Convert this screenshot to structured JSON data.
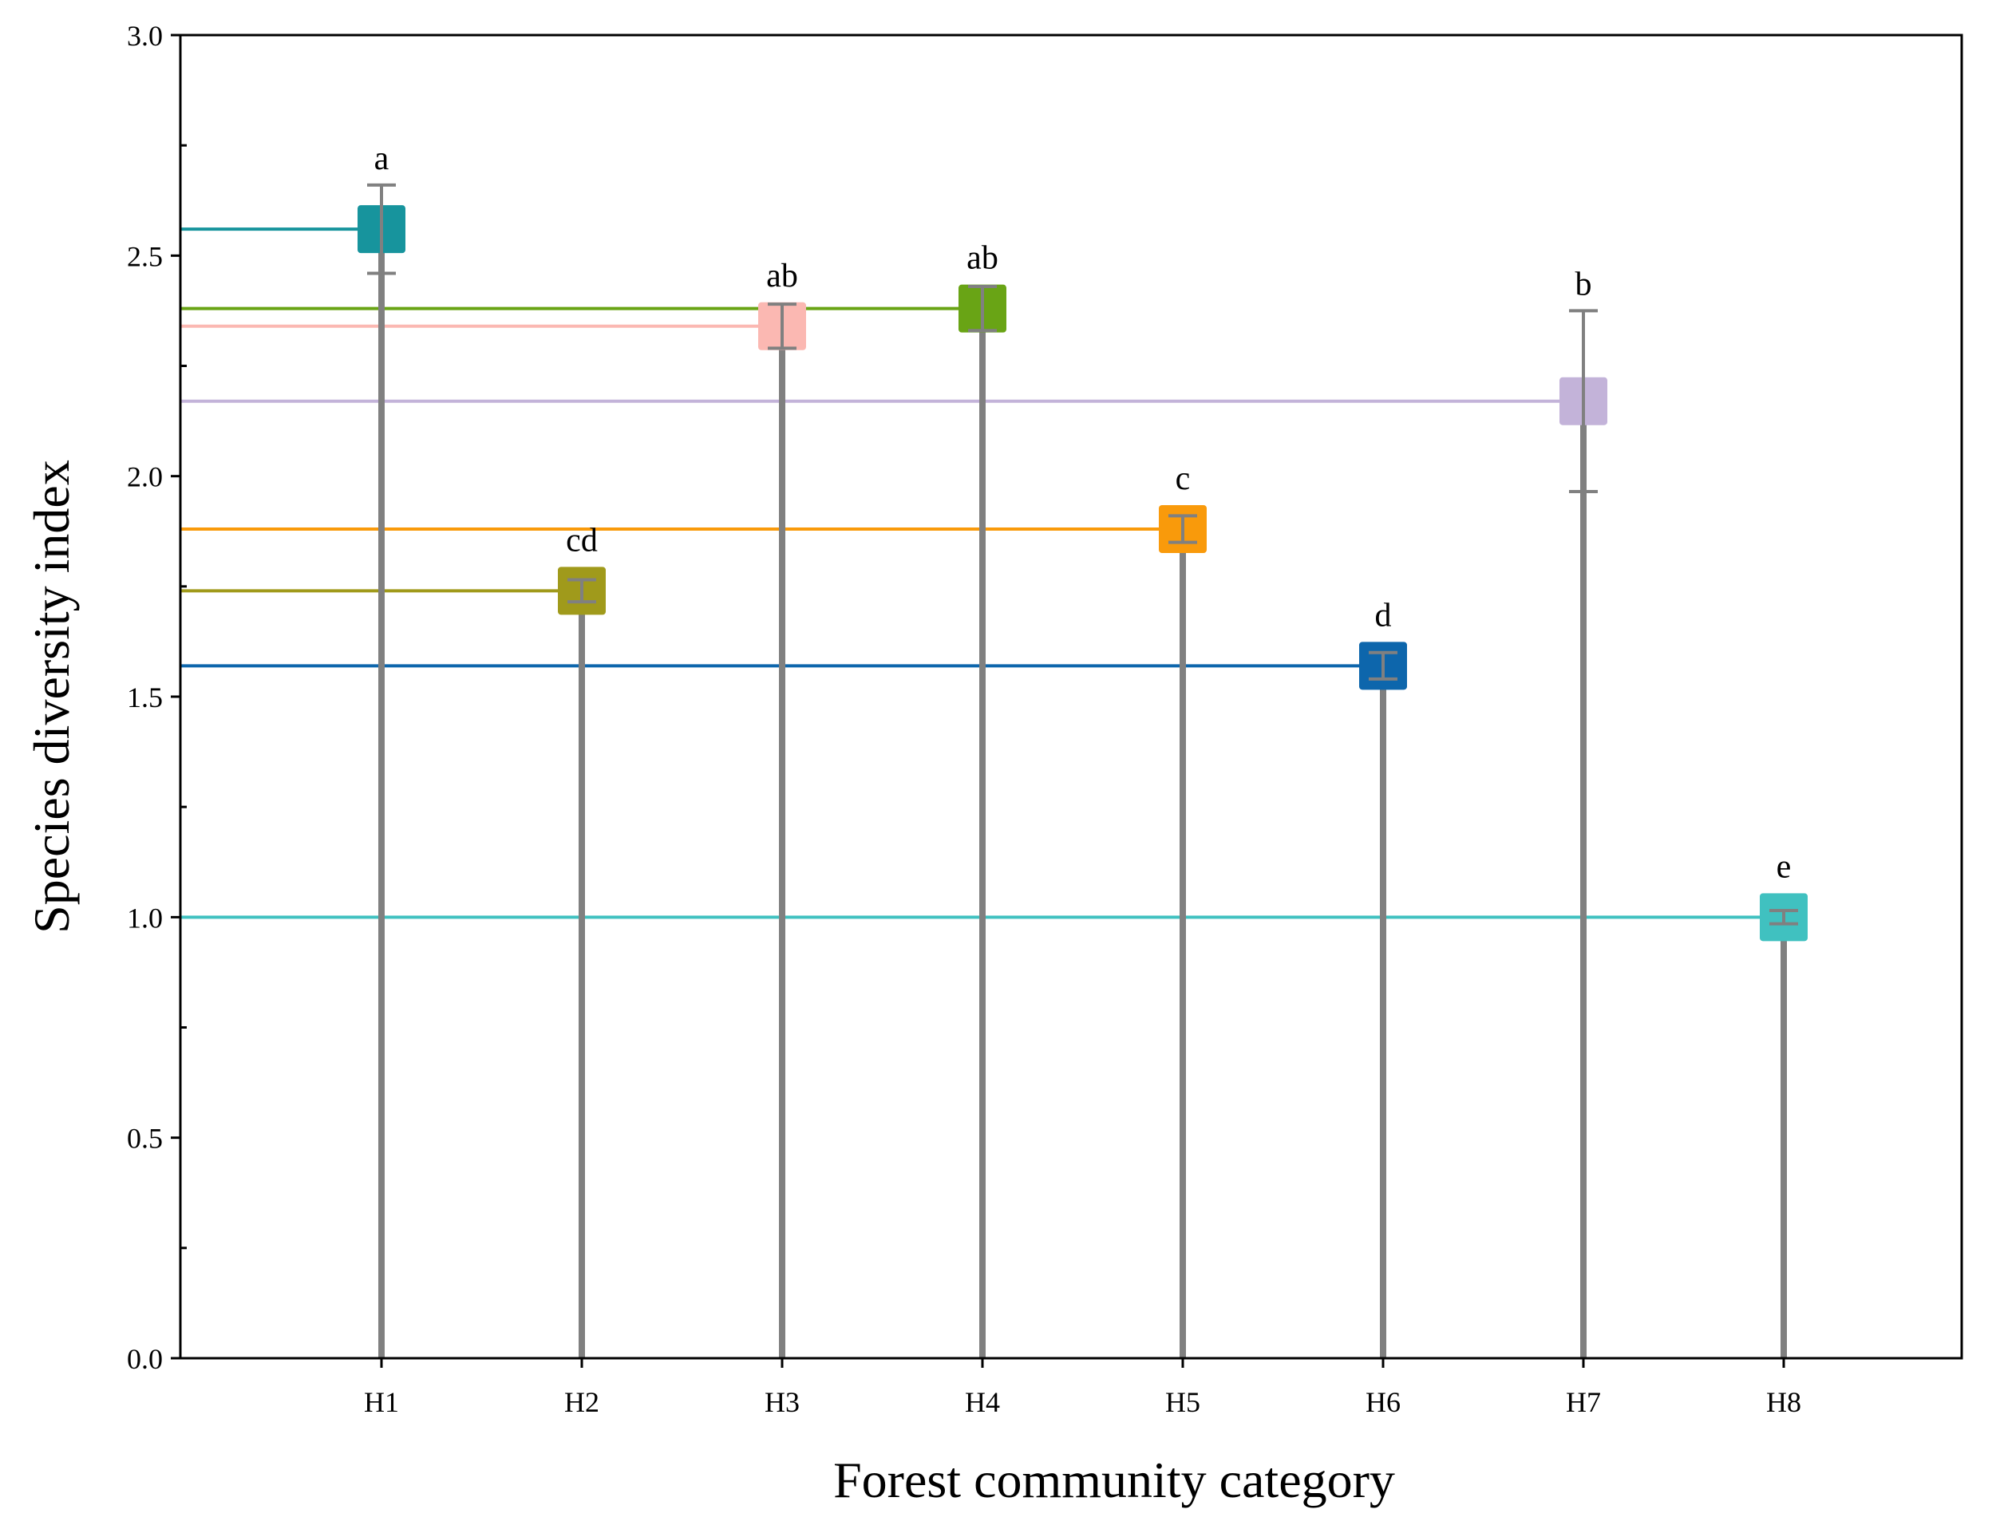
{
  "chart_data": {
    "type": "lollipop",
    "title": "",
    "xlabel": "Forest community category",
    "ylabel": "Species diversity index",
    "ylim": [
      0,
      3.0
    ],
    "yticks": [
      "0.0",
      "0.5",
      "1.0",
      "1.5",
      "2.0",
      "2.5",
      "3.0"
    ],
    "yminor_ticks": [
      0.25,
      0.75,
      1.25,
      1.75,
      2.25,
      2.75
    ],
    "categories": [
      "H1",
      "H2",
      "H3",
      "H4",
      "H5",
      "H6",
      "H7",
      "H8"
    ],
    "values": [
      2.56,
      1.74,
      2.34,
      2.38,
      1.88,
      1.57,
      2.17,
      1.0
    ],
    "errors": [
      0.1,
      0.025,
      0.05,
      0.05,
      0.03,
      0.03,
      0.205,
      0.015
    ],
    "significance": [
      "a",
      "cd",
      "ab",
      "ab",
      "c",
      "d",
      "b",
      "e"
    ],
    "colors": [
      "#17949d",
      "#a09a1b",
      "#fbb8b2",
      "#69a415",
      "#f99a0b",
      "#0d66ac",
      "#c3b3d9",
      "#40c1c0"
    ],
    "stem_color": "#808080",
    "grid": false
  }
}
